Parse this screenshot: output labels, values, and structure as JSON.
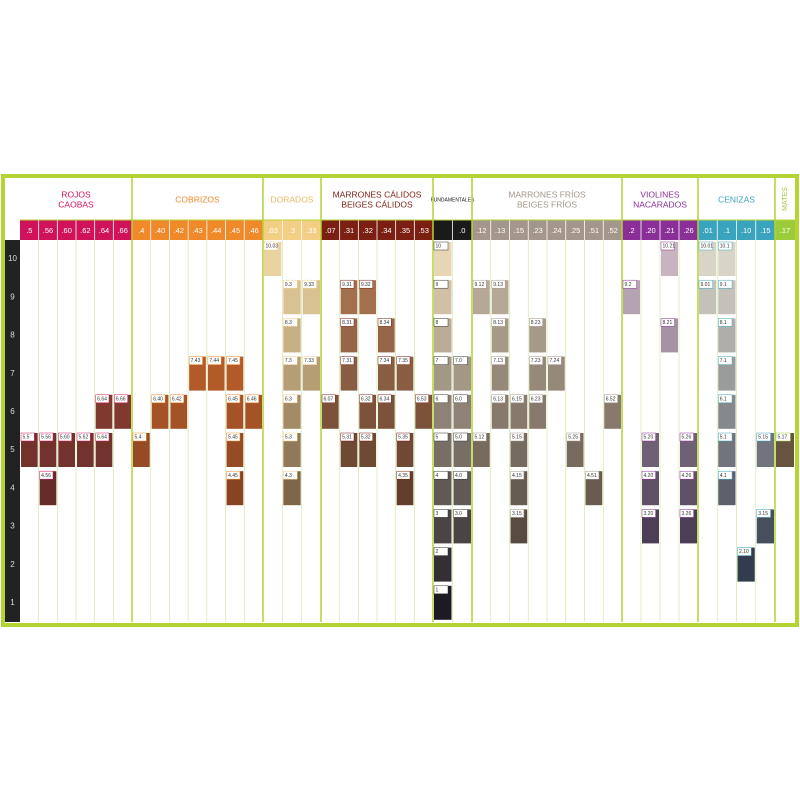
{
  "levels": [
    10,
    9,
    8,
    7,
    6,
    5,
    4,
    3,
    2,
    1
  ],
  "groups": [
    {
      "title": [
        "ROJOS",
        "CAOBAS"
      ],
      "color": "#d0125b",
      "light": "#b8523f",
      "dark": "#3a1a1c",
      "codes": [
        ".5",
        ".56",
        ".60",
        ".62",
        ".64",
        ".66"
      ],
      "swatches": [
        {
          "label": "6.64"
        },
        {
          "label": "6.66"
        },
        {
          "label": "5.5"
        },
        {
          "label": "5.56"
        },
        {
          "label": "5.60"
        },
        {
          "label": "5.62"
        },
        {
          "label": "5.64"
        },
        {
          "label": "4.56"
        }
      ]
    },
    {
      "title": [
        "COBRIZOS"
      ],
      "color": "#f0892a",
      "light": "#e0742e",
      "dark": "#5a2a1c",
      "codes": [
        ".4",
        ".40",
        ".42",
        ".43",
        ".44",
        ".45",
        ".46"
      ],
      "swatches": [
        {
          "label": "7.43"
        },
        {
          "label": "7.44"
        },
        {
          "label": "7.45"
        },
        {
          "label": "6.40"
        },
        {
          "label": "6.42"
        },
        {
          "label": "6.45"
        },
        {
          "label": "6.46"
        },
        {
          "label": "5.4"
        },
        {
          "label": "5.45"
        },
        {
          "label": "4.45"
        }
      ]
    },
    {
      "title": [
        "DORADOS"
      ],
      "color": "#f3cf86",
      "light": "#ead3a0",
      "dark": "#4a3020",
      "codes": [
        ".03",
        ".3",
        ".33"
      ],
      "swatches": [
        {
          "label": "10.03"
        },
        {
          "label": "9.3"
        },
        {
          "label": "9.33"
        },
        {
          "label": "8.3"
        },
        {
          "label": "7.3"
        },
        {
          "label": "7.33"
        },
        {
          "label": "6.3"
        },
        {
          "label": "5.3"
        },
        {
          "label": "4.3"
        }
      ]
    },
    {
      "title": [
        "MARRONES CÁLIDOS",
        "BEIGES CÁLIDOS"
      ],
      "color": "#7a1f12",
      "light": "#b07a55",
      "dark": "#3a2218",
      "codes": [
        ".07",
        ".31",
        ".32",
        ".34",
        ".35",
        ".53"
      ],
      "swatches": [
        {
          "label": "9.31"
        },
        {
          "label": "9.32"
        },
        {
          "label": "8.31"
        },
        {
          "label": "8.34"
        },
        {
          "label": "7.31"
        },
        {
          "label": "7.34"
        },
        {
          "label": "7.35"
        },
        {
          "label": "6.07"
        },
        {
          "label": "6.32"
        },
        {
          "label": "6.34"
        },
        {
          "label": "6.53"
        },
        {
          "label": "5.31"
        },
        {
          "label": "5.32"
        },
        {
          "label": "5.35"
        },
        {
          "label": "4.35"
        }
      ]
    },
    {
      "title": [
        "FUNDAMENTALES"
      ],
      "color": "#1a1a1a",
      "light": "#e6d6b6",
      "dark": "#1e1a24",
      "codes": [
        null,
        ".0"
      ],
      "swatches": [
        {
          "label": "10"
        },
        {
          "label": "9"
        },
        {
          "label": "8"
        },
        {
          "label": "7"
        },
        {
          "label": "7.0"
        },
        {
          "label": "6"
        },
        {
          "label": "6.0"
        },
        {
          "label": "5"
        },
        {
          "label": "5.0"
        },
        {
          "label": "4"
        },
        {
          "label": "4.0"
        },
        {
          "label": "3"
        },
        {
          "label": "3.0"
        },
        {
          "label": "2"
        },
        {
          "label": "1"
        }
      ]
    },
    {
      "title": [
        "MARRONES FRÍOS",
        "BEIGES FRÍOS"
      ],
      "color": "#a3968a",
      "light": "#c4b8a4",
      "dark": "#3a2c26",
      "codes": [
        ".12",
        ".13",
        ".15",
        ".23",
        ".24",
        ".25",
        ".51",
        ".52"
      ],
      "swatches": [
        {
          "label": "9.12"
        },
        {
          "label": "9.13"
        },
        {
          "label": "8.13"
        },
        {
          "label": "8.23"
        },
        {
          "label": "7.13"
        },
        {
          "label": "7.23"
        },
        {
          "label": "7.24"
        },
        {
          "label": "6.13"
        },
        {
          "label": "6.15"
        },
        {
          "label": "6.23"
        },
        {
          "label": "6.52"
        },
        {
          "label": "5.12"
        },
        {
          "label": "5.15"
        },
        {
          "label": "5.25"
        },
        {
          "label": "4.15"
        },
        {
          "label": "4.51"
        },
        {
          "label": "3.15"
        }
      ]
    },
    {
      "title": [
        "VIOLINES",
        "NACARADOS"
      ],
      "color": "#8a2f98",
      "light": "#c8b4c0",
      "dark": "#2a1c3a",
      "codes": [
        ".2",
        ".20",
        ".21",
        ".26"
      ],
      "swatches": [
        {
          "label": "10.21"
        },
        {
          "label": "9.2"
        },
        {
          "label": "8.21"
        },
        {
          "label": "5.20"
        },
        {
          "label": "5.26"
        },
        {
          "label": "4.20"
        },
        {
          "label": "4.26"
        },
        {
          "label": "3.20"
        },
        {
          "label": "3.26"
        }
      ]
    },
    {
      "title": [
        "CENIZAS"
      ],
      "color": "#3aa3be",
      "light": "#d8d4c8",
      "dark": "#1e2840",
      "codes": [
        ".01",
        ".1",
        ".10",
        ".15"
      ],
      "swatches": [
        {
          "label": "10.01"
        },
        {
          "label": "10.1"
        },
        {
          "label": "9.01"
        },
        {
          "label": "9.1"
        },
        {
          "label": "8.1"
        },
        {
          "label": "7.1"
        },
        {
          "label": "6.1"
        },
        {
          "label": "5.1"
        },
        {
          "label": "5.15"
        },
        {
          "label": "4.1"
        },
        {
          "label": "3.15"
        },
        {
          "label": "2.10"
        }
      ]
    },
    {
      "title": [
        "MATES"
      ],
      "color": "#9ccc3a",
      "light": "#8a7458",
      "dark": "#4a3a2c",
      "codes": [
        ".17"
      ],
      "swatches": [
        {
          "label": "5.17"
        }
      ]
    }
  ]
}
